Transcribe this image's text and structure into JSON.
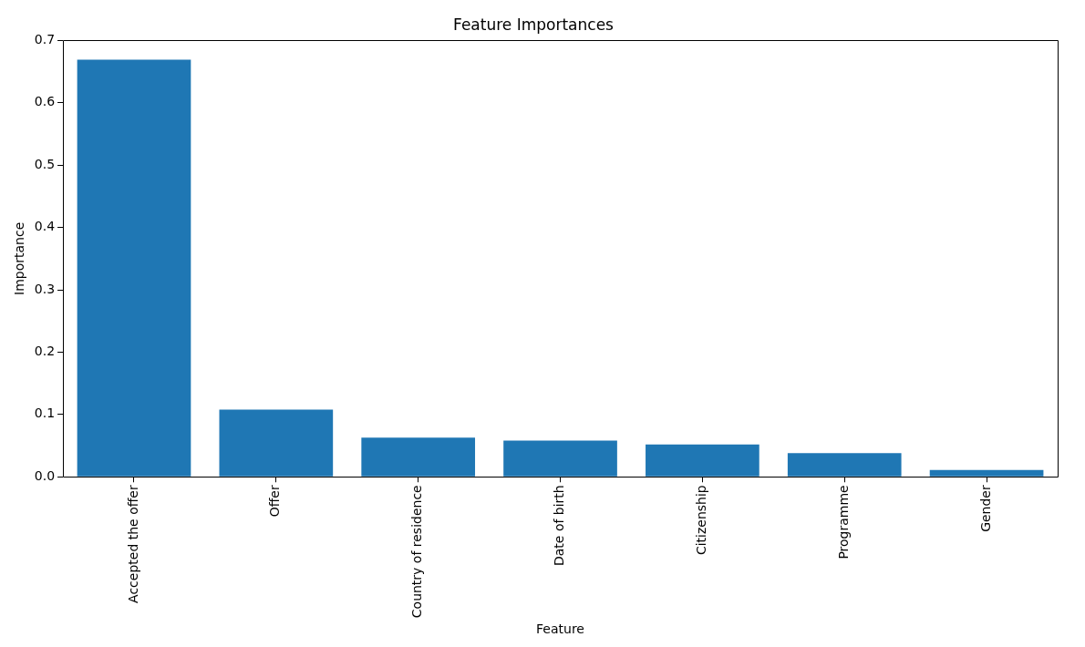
{
  "chart_data": {
    "type": "bar",
    "title": "Feature Importances",
    "xlabel": "Feature",
    "ylabel": "Importance",
    "categories": [
      "Accepted the offer",
      "Offer",
      "Country of residence",
      "Date of birth",
      "Citizenship",
      "Programme",
      "Gender"
    ],
    "values": [
      0.669,
      0.108,
      0.063,
      0.058,
      0.052,
      0.038,
      0.011
    ],
    "color": "#1f77b4",
    "ylim": [
      0,
      0.7
    ],
    "yticks": [
      {
        "value": 0,
        "label": "0.0"
      },
      {
        "value": 0.1,
        "label": "0.1"
      },
      {
        "value": 0.2,
        "label": "0.2"
      },
      {
        "value": 0.3,
        "label": "0.3"
      },
      {
        "value": 0.4,
        "label": "0.4"
      },
      {
        "value": 0.5,
        "label": "0.5"
      },
      {
        "value": 0.6,
        "label": "0.6"
      },
      {
        "value": 0.7,
        "label": "0.7"
      }
    ],
    "grid": false,
    "legend": false
  }
}
